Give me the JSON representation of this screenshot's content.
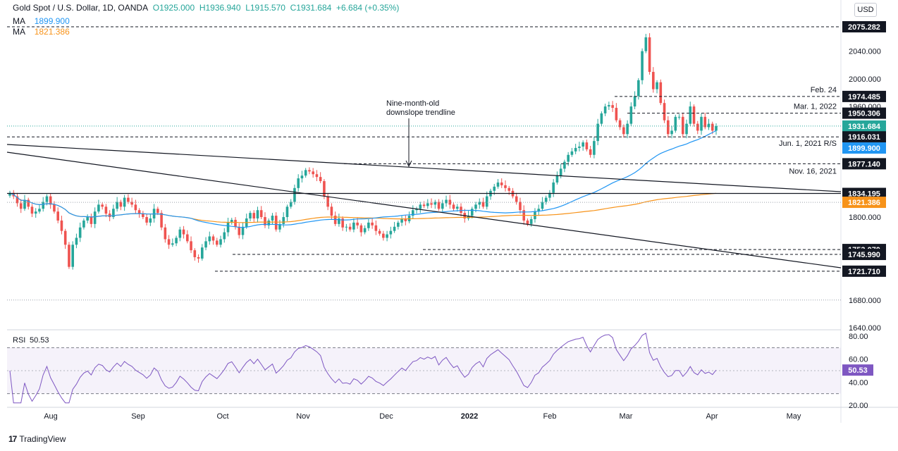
{
  "header": {
    "symbol": "Gold Spot / U.S. Dollar, 1D, OANDA",
    "open": "O1925.000",
    "high": "H1936.940",
    "low": "L1915.570",
    "close": "C1931.684",
    "change": "+6.684 (+0.35%)",
    "ma1_label": "MA",
    "ma1_value": "1899.900",
    "ma2_label": "MA",
    "ma2_value": "1821.386",
    "currency": "USD"
  },
  "brand": "TradingView",
  "colors": {
    "up": "#26a69a",
    "down": "#ef5350",
    "ma_fast": "#2196f3",
    "ma_slow": "#f7931a",
    "rsi": "#7e57c2",
    "trend": "#131722"
  },
  "chart_data": {
    "type": "candlestick",
    "y_ticks": [
      "2040.000",
      "2000.000",
      "1960.000",
      "1800.000",
      "1680.000",
      "1640.000"
    ],
    "ylim": [
      1640,
      2085
    ],
    "x_ticks": [
      "Aug",
      "Sep",
      "Oct",
      "Nov",
      "Dec",
      "2022",
      "Feb",
      "Mar",
      "Apr",
      "May"
    ],
    "levels": [
      {
        "value": "2075.282",
        "note": "",
        "style": "black"
      },
      {
        "value": "1974.485",
        "note": "Feb. 24",
        "style": "black"
      },
      {
        "value": "1950.306",
        "note": "Mar. 1, 2022",
        "style": "black"
      },
      {
        "value": "1931.684",
        "note": "",
        "style": "green"
      },
      {
        "value": "1916.031",
        "note": "Jun. 1, 2021 R/S",
        "style": "black"
      },
      {
        "value": "1899.900",
        "note": "",
        "style": "blue"
      },
      {
        "value": "1877.140",
        "note": "Nov. 16, 2021",
        "style": "black"
      },
      {
        "value": "1834.195",
        "note": "",
        "style": "black"
      },
      {
        "value": "1821.386",
        "note": "",
        "style": "orange"
      },
      {
        "value": "1753.070",
        "note": "",
        "style": "black"
      },
      {
        "value": "1745.990",
        "note": "",
        "style": "black"
      },
      {
        "value": "1721.710",
        "note": "",
        "style": "black"
      }
    ],
    "trendline_annotation": "Nine-month-old downslope trendline",
    "close_series": [
      1835,
      1830,
      1820,
      1812,
      1825,
      1815,
      1805,
      1808,
      1812,
      1822,
      1830,
      1818,
      1808,
      1795,
      1780,
      1760,
      1728,
      1760,
      1770,
      1785,
      1795,
      1800,
      1790,
      1808,
      1818,
      1815,
      1805,
      1800,
      1812,
      1822,
      1815,
      1828,
      1822,
      1818,
      1810,
      1805,
      1800,
      1792,
      1798,
      1812,
      1806,
      1785,
      1768,
      1760,
      1762,
      1770,
      1782,
      1775,
      1765,
      1752,
      1742,
      1740,
      1756,
      1765,
      1772,
      1766,
      1760,
      1768,
      1778,
      1792,
      1796,
      1786,
      1774,
      1786,
      1798,
      1806,
      1798,
      1810,
      1800,
      1788,
      1795,
      1802,
      1782,
      1790,
      1800,
      1815,
      1822,
      1842,
      1856,
      1860,
      1868,
      1866,
      1862,
      1858,
      1852,
      1830,
      1815,
      1802,
      1790,
      1798,
      1785,
      1786,
      1782,
      1792,
      1788,
      1778,
      1784,
      1792,
      1788,
      1780,
      1776,
      1770,
      1775,
      1780,
      1786,
      1792,
      1798,
      1794,
      1802,
      1810,
      1812,
      1818,
      1816,
      1820,
      1818,
      1822,
      1812,
      1820,
      1825,
      1818,
      1812,
      1815,
      1806,
      1798,
      1802,
      1812,
      1818,
      1822,
      1815,
      1830,
      1838,
      1844,
      1850,
      1846,
      1842,
      1838,
      1830,
      1822,
      1810,
      1795,
      1790,
      1797,
      1808,
      1812,
      1822,
      1828,
      1835,
      1850,
      1860,
      1870,
      1880,
      1890,
      1895,
      1900,
      1902,
      1908,
      1898,
      1890,
      1910,
      1935,
      1950,
      1960,
      1962,
      1958,
      1940,
      1930,
      1920,
      1935,
      1960,
      1975,
      1998,
      2040,
      2060,
      2010,
      1985,
      1995,
      1965,
      1940,
      1920,
      1925,
      1945,
      1945,
      1920,
      1935,
      1960,
      1935,
      1925,
      1945,
      1930,
      1935,
      1925,
      1931.684
    ],
    "rsi": {
      "label": "RSI",
      "value": "50.53",
      "ticks": [
        "80.00",
        "60.00",
        "40.00",
        "20.00"
      ],
      "levels": [
        70,
        30
      ]
    }
  }
}
